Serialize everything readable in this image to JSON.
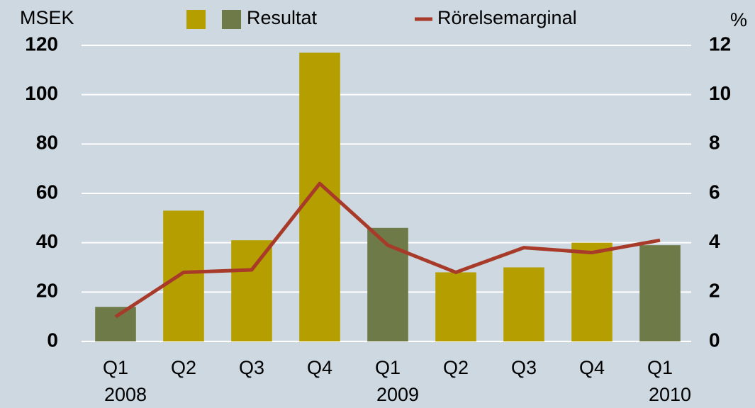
{
  "chart_data": {
    "type": "bar",
    "y_label": "MSEK",
    "y2_label": "%",
    "categories": [
      "Q1",
      "Q2",
      "Q3",
      "Q4",
      "Q1",
      "Q2",
      "Q3",
      "Q4",
      "Q1"
    ],
    "year_labels": [
      "2008",
      null,
      null,
      null,
      "2009",
      null,
      null,
      null,
      "2010"
    ],
    "series": [
      {
        "name": "Resultat",
        "legend_colors": [
          "#b59e00",
          "#6e7a47"
        ],
        "colors": [
          "#6e7a47",
          "#b59e00",
          "#b59e00",
          "#b59e00",
          "#6e7a47",
          "#b59e00",
          "#b59e00",
          "#b59e00",
          "#6e7a47"
        ],
        "values": [
          14,
          53,
          41,
          117,
          46,
          28,
          30,
          40,
          39
        ]
      },
      {
        "name": "Rörelsemarginal",
        "color": "#a83a2a",
        "axis": "y2",
        "type": "line",
        "values": [
          1.0,
          2.8,
          2.9,
          6.4,
          3.9,
          2.8,
          3.8,
          3.6,
          4.1
        ]
      }
    ],
    "ylim": [
      0,
      120
    ],
    "yticks": [
      0,
      20,
      40,
      60,
      80,
      100,
      120
    ],
    "y2lim": [
      0,
      12
    ],
    "y2ticks": [
      0,
      2,
      4,
      6,
      8,
      10,
      12
    ],
    "grid": true
  }
}
